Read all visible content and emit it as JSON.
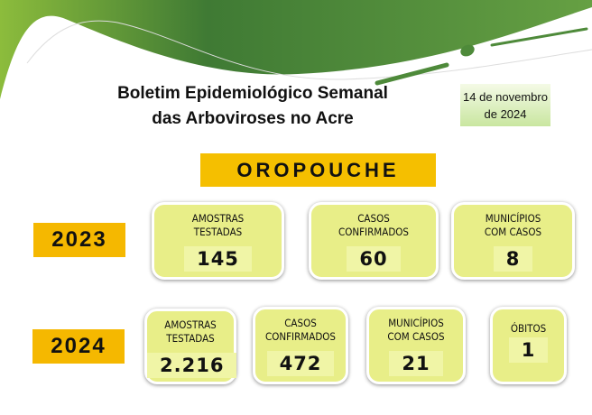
{
  "header": {
    "title_line1": "Boletim Epidemiológico Semanal",
    "title_line2": "das Arboviroses no Acre",
    "date_line1": "14 de novembro",
    "date_line2": "de 2024"
  },
  "disease": "OROPOUCHE",
  "colors": {
    "header_green": "#4e8a3a",
    "highlight_orange": "#f5b800",
    "card_fill": "#e8ee88"
  },
  "years": [
    {
      "year": "2023",
      "cards": [
        {
          "label1": "AMOSTRAS",
          "label2": "TESTADAS",
          "value": "145"
        },
        {
          "label1": "CASOS",
          "label2": "CONFIRMADOS",
          "value": "60"
        },
        {
          "label1": "MUNICÍPIOS",
          "label2": "COM CASOS",
          "value": "8"
        }
      ]
    },
    {
      "year": "2024",
      "cards": [
        {
          "label1": "AMOSTRAS",
          "label2": "TESTADAS",
          "value": "2.216"
        },
        {
          "label1": "CASOS",
          "label2": "CONFIRMADOS",
          "value": "472"
        },
        {
          "label1": "MUNICÍPIOS",
          "label2": "COM CASOS",
          "value": "21"
        },
        {
          "label1": "ÓBITOS",
          "label2": "",
          "value": "1"
        }
      ]
    }
  ]
}
